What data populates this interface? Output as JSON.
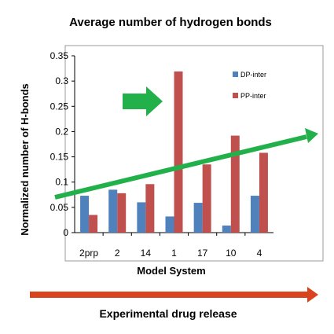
{
  "chart_data": {
    "type": "bar",
    "title": "Average number of hydrogen bonds",
    "xlabel": "Model System",
    "ylabel": "Normalized number of H-bonds",
    "ylim": [
      0,
      0.35
    ],
    "yticks": [
      "0",
      "0.05",
      "0.1",
      "0.15",
      "0.2",
      "0.25",
      "0.3",
      "0.35"
    ],
    "categories": [
      "2prp",
      "2",
      "14",
      "1",
      "17",
      "10",
      "4"
    ],
    "series": [
      {
        "name": "DP-inter",
        "color": "#4f81bd",
        "values": [
          0.073,
          0.085,
          0.06,
          0.032,
          0.059,
          0.014,
          0.073
        ]
      },
      {
        "name": "PP-inter",
        "color": "#c0504d",
        "values": [
          0.035,
          0.078,
          0.096,
          0.319,
          0.135,
          0.192,
          0.158
        ]
      }
    ],
    "legend_position": "right",
    "grid": false,
    "annotation_colors": {
      "trend_arrow": "#22b04a",
      "release_arrow": "#d9431e"
    },
    "bottom_label": "Experimental drug release"
  }
}
